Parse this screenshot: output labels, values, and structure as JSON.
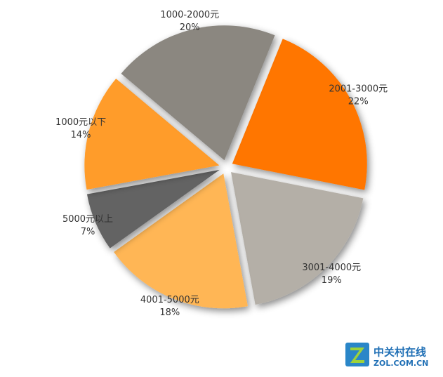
{
  "chart_data": {
    "type": "pie",
    "categories": [
      "2001-3000元",
      "3001-4000元",
      "4001-5000元",
      "5000元以上",
      "1000元以下",
      "1000-2000元"
    ],
    "values": [
      22,
      19,
      18,
      7,
      14,
      20
    ],
    "value_labels": [
      "22%",
      "19%",
      "18%",
      "7%",
      "14%",
      "20%"
    ],
    "colors": [
      "#ff7600",
      "#b4afa7",
      "#ffb655",
      "#646464",
      "#ff9c2c",
      "#8b8780"
    ]
  },
  "watermark": {
    "name": "中关村在线",
    "url": "ZOL.COM.CN"
  }
}
